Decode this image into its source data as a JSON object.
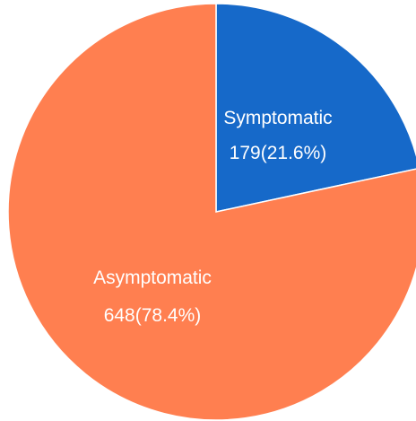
{
  "chart_data": {
    "type": "pie",
    "slices": [
      {
        "label": "Symptomatic",
        "value": 179,
        "value_label": "179(21.6%)",
        "color": "#1669C9"
      },
      {
        "label": "Asymptomatic",
        "value": 648,
        "value_label": "648(78.4%)",
        "color": "#FF7F50"
      }
    ],
    "start": "top",
    "direction": "clockwise",
    "legend": "none"
  }
}
